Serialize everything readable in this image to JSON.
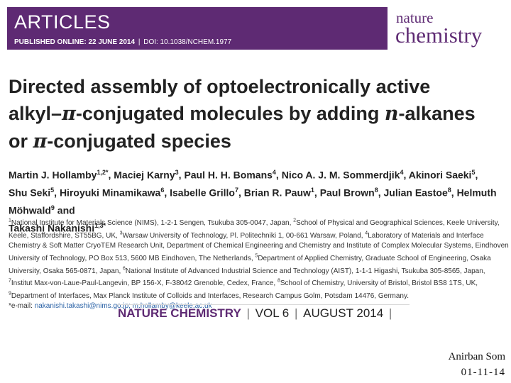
{
  "header": {
    "section": "ARTICLES",
    "published": "PUBLISHED ONLINE: 22 JUNE 2014",
    "doi": "DOI: 10.1038/NCHEM.1977",
    "journal_logo_top": "nature",
    "journal_logo_bottom": "chemistry",
    "banner_color": "#5e2a73"
  },
  "paper": {
    "title_a": "Directed assembly of optoelectronically active",
    "title_b1": "alkyl–",
    "title_pi1": "π",
    "title_b2": "-conjugated molecules by adding ",
    "title_n": "n",
    "title_b3": "-alkanes",
    "title_c1": "or ",
    "title_pi2": "π",
    "title_c2": "-conjugated species",
    "authors": [
      {
        "name": "Martin J. Hollamby",
        "sup": "1,2*"
      },
      {
        "name": "Maciej Karny",
        "sup": "3"
      },
      {
        "name": "Paul H. H. Bomans",
        "sup": "4"
      },
      {
        "name": "Nico A. J. M. Sommerdjik",
        "sup": "4"
      },
      {
        "name": "Akinori Saeki",
        "sup": "5"
      },
      {
        "name": "Shu Seki",
        "sup": "5"
      },
      {
        "name": "Hiroyuki Minamikawa",
        "sup": "6"
      },
      {
        "name": "Isabelle Grillo",
        "sup": "7"
      },
      {
        "name": "Brian R. Pauw",
        "sup": "1"
      },
      {
        "name": "Paul Brown",
        "sup": "8"
      },
      {
        "name": "Julian Eastoe",
        "sup": "8"
      },
      {
        "name": "Helmuth Möhwald",
        "sup": "9"
      },
      {
        "name": "Takashi Nakanishi",
        "sup": "1,3*"
      }
    ],
    "affiliations": [
      {
        "sup": "1",
        "text": "National Institute for Materials Science (NIMS), 1-2-1 Sengen, Tsukuba 305-0047, Japan,"
      },
      {
        "sup": "2",
        "text": "School of Physical and Geographical Sciences, Keele University, Keele, Staffordshire, ST55BG, UK,"
      },
      {
        "sup": "3",
        "text": "Warsaw University of Technology, Pl. Politechniki 1, 00-661 Warsaw, Poland,"
      },
      {
        "sup": "4",
        "text": "Laboratory of Materials and Interface Chemistry & Soft Matter CryoTEM Research Unit, Department of Chemical Engineering and Chemistry and Institute of Complex Molecular Systems, Eindhoven University of Technology, PO Box 513, 5600 MB Eindhoven, The Netherlands,"
      },
      {
        "sup": "5",
        "text": "Department of Applied Chemistry, Graduate School of Engineering, Osaka University, Osaka 565-0871, Japan,"
      },
      {
        "sup": "6",
        "text": "National Institute of Advanced Industrial Science and Technology (AIST), 1-1-1 Higashi, Tsukuba 305-8565, Japan,"
      },
      {
        "sup": "7",
        "text": "Institut Max-von-Laue-Paul-Langevin, BP 156-X, F-38042 Grenoble, Cedex, France,"
      },
      {
        "sup": "8",
        "text": "School of Chemistry, University of Bristol, Bristol BS8 1TS, UK,"
      },
      {
        "sup": "9",
        "text": "Department of Interfaces, Max Planck Institute of Colloids and Interfaces, Research Campus Golm, Potsdam 14476, Germany."
      }
    ],
    "email_label": "*e-mail:",
    "emails": "nakanishi.takashi@nims.go.jp; m.hollamby@keele.ac.uk"
  },
  "footer": {
    "journal": "NATURE CHEMISTRY",
    "volume": "VOL 6",
    "date": "AUGUST 2014"
  },
  "presenter": {
    "name": "Anirban Som",
    "date": "01-11-14"
  }
}
